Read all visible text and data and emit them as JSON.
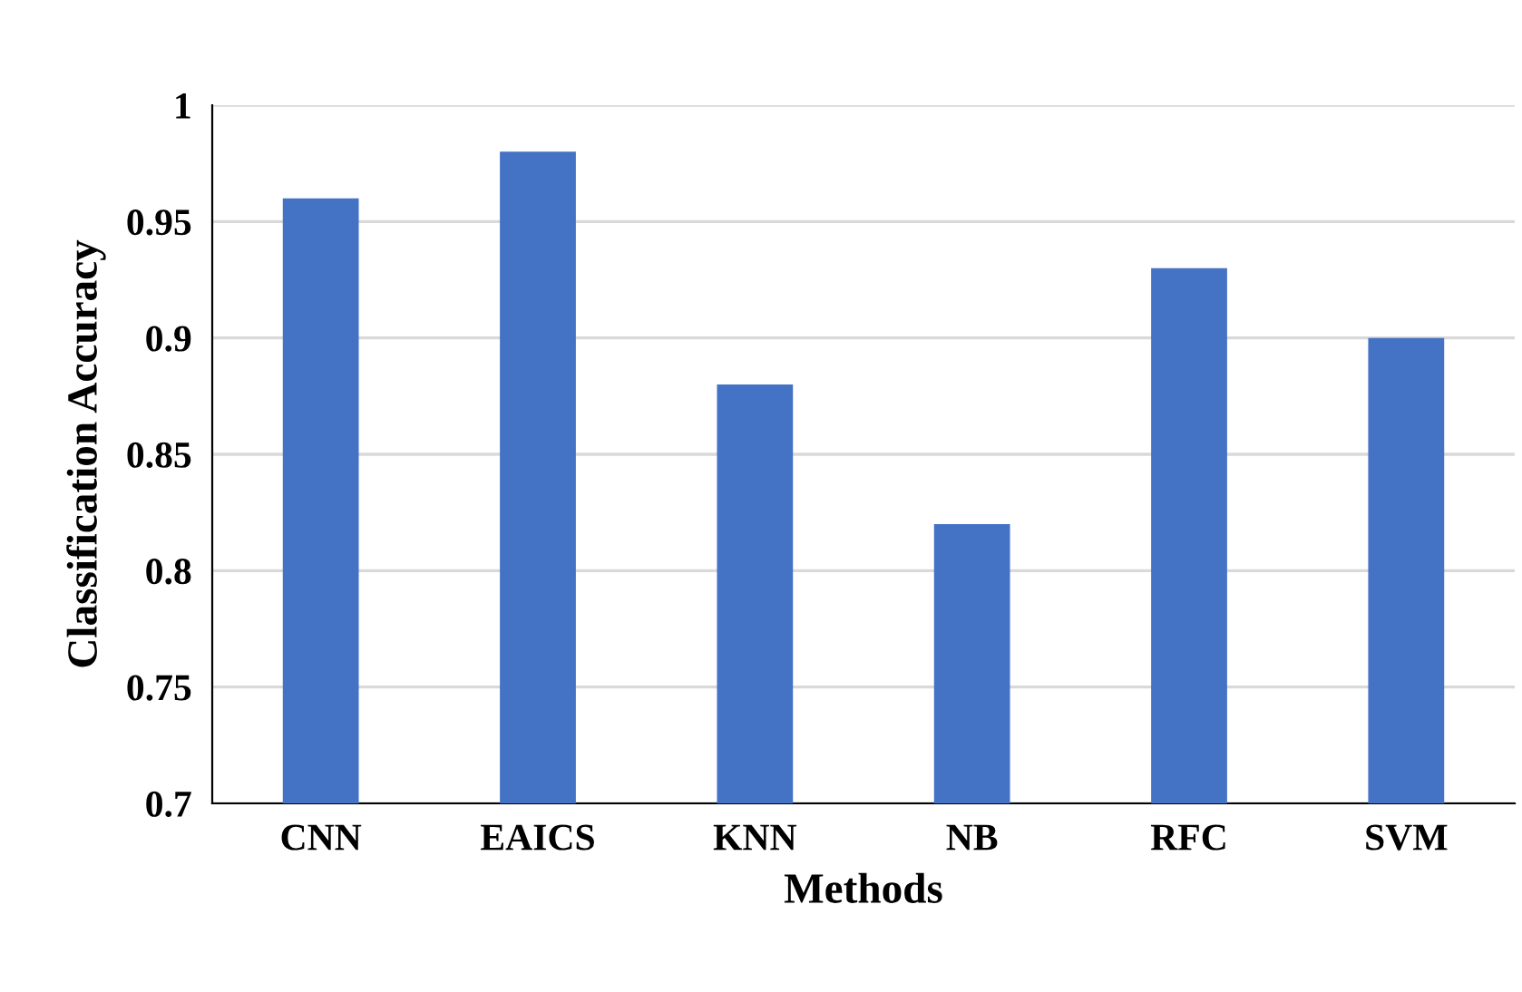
{
  "chart_data": {
    "type": "bar",
    "xlabel": "Methods",
    "ylabel": "Classification Accuracy",
    "categories": [
      "CNN",
      "EAICS",
      "KNN",
      "NB",
      "RFC",
      "SVM"
    ],
    "values": [
      0.96,
      0.98,
      0.88,
      0.82,
      0.93,
      0.9
    ],
    "color": "#4472c4",
    "ylim": [
      0.7,
      1
    ],
    "yticks": [
      0.7,
      0.75,
      0.8,
      0.85,
      0.9,
      0.95,
      1
    ],
    "grid": "y",
    "legend": false
  }
}
